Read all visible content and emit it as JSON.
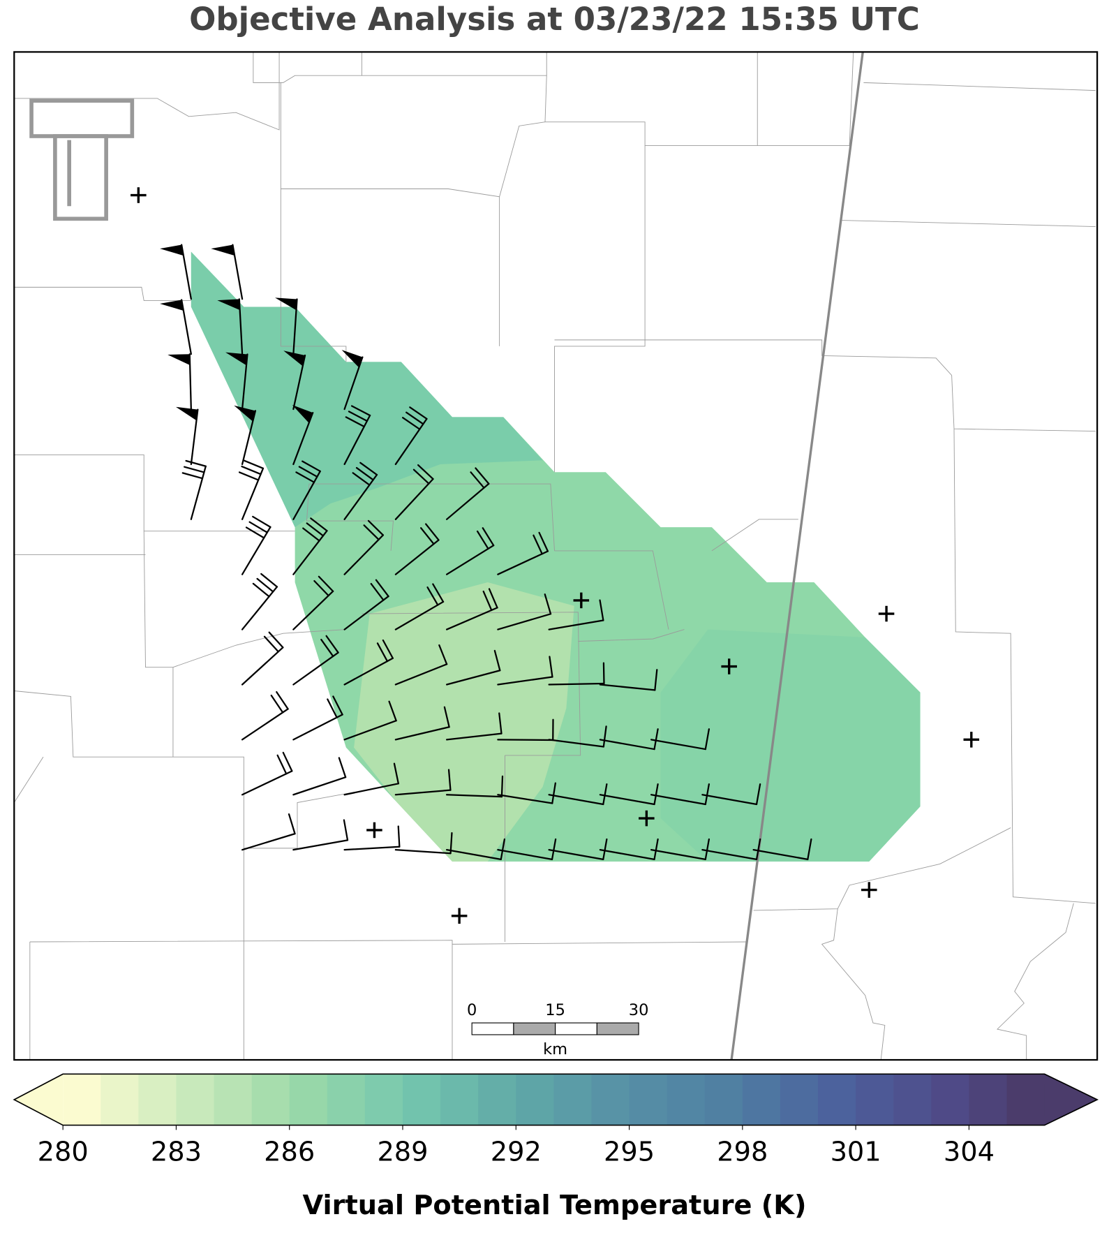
{
  "header": {
    "title": "Objective Analysis at 03/23/22 15:35 UTC"
  },
  "scale_bar": {
    "ticks": [
      "0",
      "15",
      "30"
    ],
    "unit": "km"
  },
  "colorbar": {
    "label": "Virtual Potential Temperature (K)",
    "ticks": [
      280,
      283,
      286,
      289,
      292,
      295,
      298,
      301,
      304
    ]
  }
}
